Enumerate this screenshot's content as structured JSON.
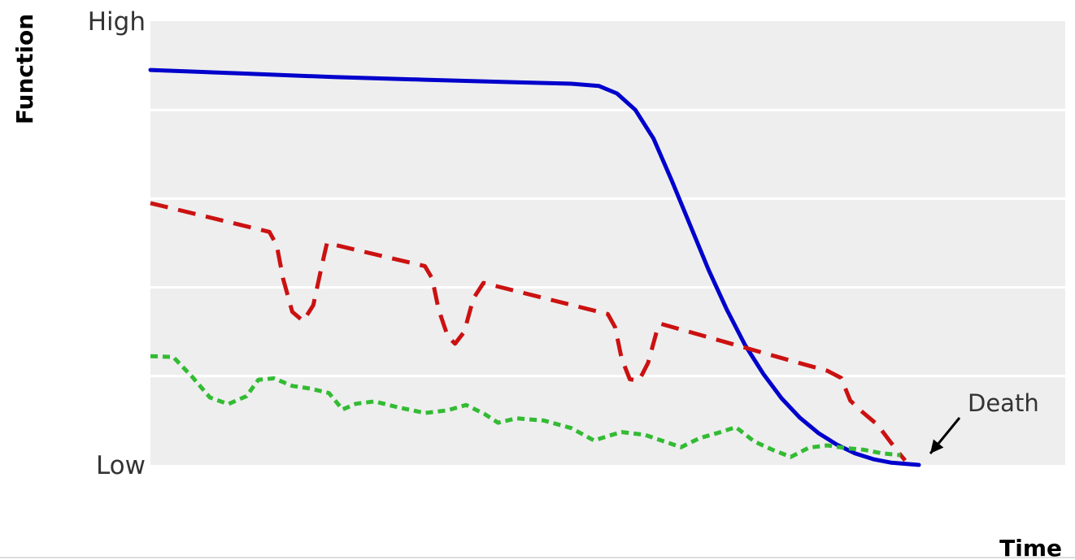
{
  "chart_data": {
    "type": "line",
    "title": "",
    "xlabel": "Time",
    "ylabel": "Function",
    "yticks": [
      {
        "value": 100,
        "label": "High"
      },
      {
        "value": 0,
        "label": "Low"
      }
    ],
    "xlim": [
      0,
      100
    ],
    "ylim": [
      0,
      100
    ],
    "grid": true,
    "background": "#eeeeee",
    "annotations": [
      {
        "text": "Death",
        "x": 84,
        "y": 0
      }
    ],
    "series": [
      {
        "color": "#0000cc",
        "dash": "solid",
        "points": [
          [
            0,
            89
          ],
          [
            10,
            88.2
          ],
          [
            20,
            87.4
          ],
          [
            30,
            86.8
          ],
          [
            40,
            86.2
          ],
          [
            46,
            85.9
          ],
          [
            49,
            85.4
          ],
          [
            51,
            83.7
          ],
          [
            53,
            80
          ],
          [
            55,
            73.5
          ],
          [
            57,
            64
          ],
          [
            59,
            54
          ],
          [
            61,
            44
          ],
          [
            63,
            35
          ],
          [
            65,
            27
          ],
          [
            67,
            20.5
          ],
          [
            69,
            15
          ],
          [
            71,
            10.6
          ],
          [
            73,
            7.2
          ],
          [
            75,
            4.6
          ],
          [
            77,
            2.6
          ],
          [
            79,
            1.3
          ],
          [
            81,
            0.5
          ],
          [
            84,
            0
          ]
        ]
      },
      {
        "color": "#cc1111",
        "dash": "dashed",
        "points": [
          [
            0,
            59
          ],
          [
            13,
            52.5
          ],
          [
            13.8,
            49.5
          ],
          [
            14.5,
            42
          ],
          [
            15.5,
            34.5
          ],
          [
            16.7,
            32.4
          ],
          [
            17.8,
            36
          ],
          [
            18.8,
            45.5
          ],
          [
            19.3,
            50
          ],
          [
            30,
            44.8
          ],
          [
            30.8,
            42
          ],
          [
            31.5,
            35
          ],
          [
            32.5,
            29
          ],
          [
            33.3,
            27.3
          ],
          [
            34.3,
            30
          ],
          [
            35.3,
            37.5
          ],
          [
            36.4,
            41
          ],
          [
            50,
            34
          ],
          [
            50.8,
            31
          ],
          [
            51.5,
            24
          ],
          [
            52.4,
            19.3
          ],
          [
            53.4,
            19
          ],
          [
            54.4,
            23
          ],
          [
            55.4,
            30.5
          ],
          [
            55.8,
            31.8
          ],
          [
            70,
            23.5
          ],
          [
            74,
            21.2
          ],
          [
            75.5,
            19.6
          ],
          [
            76.5,
            14.5
          ],
          [
            77.5,
            12.5
          ],
          [
            79.5,
            9
          ],
          [
            81.5,
            3.5
          ],
          [
            82.5,
            1
          ]
        ]
      },
      {
        "color": "#33bb33",
        "dash": "dotted",
        "points": [
          [
            0,
            24.5
          ],
          [
            2.5,
            24.3
          ],
          [
            4.5,
            20
          ],
          [
            6.5,
            15.2
          ],
          [
            8.5,
            13.7
          ],
          [
            10.5,
            15.5
          ],
          [
            11.8,
            19.2
          ],
          [
            13.5,
            19.5
          ],
          [
            15.5,
            17.8
          ],
          [
            17.5,
            17.2
          ],
          [
            19.5,
            16.2
          ],
          [
            21,
            12.5
          ],
          [
            22.5,
            13.8
          ],
          [
            24.5,
            14.3
          ],
          [
            27,
            13
          ],
          [
            30,
            11.7
          ],
          [
            32.5,
            12.3
          ],
          [
            34.5,
            13.5
          ],
          [
            36.5,
            11.5
          ],
          [
            38,
            9.5
          ],
          [
            40,
            10.5
          ],
          [
            43,
            10
          ],
          [
            46,
            8.3
          ],
          [
            48.5,
            5.5
          ],
          [
            50,
            6.5
          ],
          [
            51.5,
            7.4
          ],
          [
            54,
            6.8
          ],
          [
            56,
            5.4
          ],
          [
            58,
            4
          ],
          [
            60,
            6
          ],
          [
            62,
            7.2
          ],
          [
            64,
            8.5
          ],
          [
            66,
            5.3
          ],
          [
            68,
            3.4
          ],
          [
            70,
            1.8
          ],
          [
            72,
            3.9
          ],
          [
            74,
            4.4
          ],
          [
            76,
            3.8
          ],
          [
            78,
            3.4
          ],
          [
            80,
            2.6
          ],
          [
            82,
            2.2
          ]
        ]
      }
    ]
  }
}
